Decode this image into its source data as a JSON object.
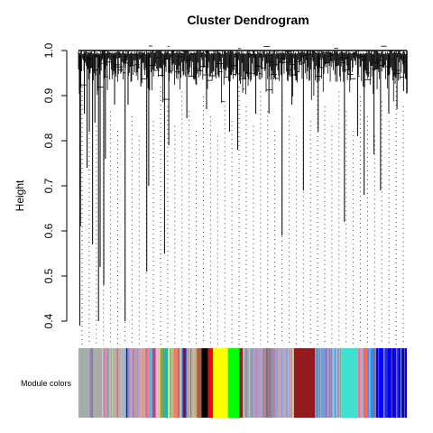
{
  "chart_data": [
    {
      "type": "dendrogram",
      "title": "Cluster Dendrogram",
      "ylabel": "Height",
      "xlabel": "",
      "ylim": [
        0.4,
        1.0
      ],
      "yticks": [
        "0.4",
        "0.5",
        "0.6",
        "0.7",
        "0.8",
        "0.9",
        "1.0"
      ],
      "merge_height_top": 1.0,
      "leaf_branches": [
        {
          "x": 0.004,
          "low": 0.39
        },
        {
          "x": 0.006,
          "low": 0.61
        },
        {
          "x": 0.018,
          "low": 0.86
        },
        {
          "x": 0.026,
          "low": 0.74
        },
        {
          "x": 0.033,
          "low": 0.82
        },
        {
          "x": 0.043,
          "low": 0.57
        },
        {
          "x": 0.05,
          "low": 0.84
        },
        {
          "x": 0.061,
          "low": 0.4
        },
        {
          "x": 0.066,
          "low": 0.52
        },
        {
          "x": 0.077,
          "low": 0.48
        },
        {
          "x": 0.082,
          "low": 0.76
        },
        {
          "x": 0.11,
          "low": 0.88
        },
        {
          "x": 0.142,
          "low": 0.4
        },
        {
          "x": 0.151,
          "low": 0.88
        },
        {
          "x": 0.19,
          "low": 0.92
        },
        {
          "x": 0.208,
          "low": 0.51
        },
        {
          "x": 0.214,
          "low": 0.7
        },
        {
          "x": 0.262,
          "low": 0.55
        },
        {
          "x": 0.275,
          "low": 0.79
        },
        {
          "x": 0.33,
          "low": 0.85
        },
        {
          "x": 0.39,
          "low": 0.87
        },
        {
          "x": 0.46,
          "low": 0.82
        },
        {
          "x": 0.485,
          "low": 0.78
        },
        {
          "x": 0.54,
          "low": 0.86
        },
        {
          "x": 0.58,
          "low": 0.86
        },
        {
          "x": 0.62,
          "low": 0.59
        },
        {
          "x": 0.65,
          "low": 0.88
        },
        {
          "x": 0.685,
          "low": 0.69
        },
        {
          "x": 0.73,
          "low": 0.82
        },
        {
          "x": 0.81,
          "low": 0.62
        },
        {
          "x": 0.85,
          "low": 0.81
        },
        {
          "x": 0.87,
          "low": 0.68
        },
        {
          "x": 0.9,
          "low": 0.77
        },
        {
          "x": 0.92,
          "low": 0.69
        },
        {
          "x": 0.945,
          "low": 0.86
        },
        {
          "x": 0.97,
          "low": 0.87
        },
        {
          "x": 0.99,
          "low": 0.91
        }
      ]
    },
    {
      "type": "color-bar",
      "label": "Module colors",
      "segments": [
        {
          "from": 0.0,
          "to": 0.1,
          "color": "#a6aeac"
        },
        {
          "from": 0.1,
          "to": 0.13,
          "color": "#c9a5a7"
        },
        {
          "from": 0.13,
          "to": 0.145,
          "color": "#a6b5c5"
        },
        {
          "from": 0.145,
          "to": 0.152,
          "color": "#0a1b88"
        },
        {
          "from": 0.152,
          "to": 0.19,
          "color": "#b99fc6"
        },
        {
          "from": 0.19,
          "to": 0.205,
          "color": "#c1b08a"
        },
        {
          "from": 0.205,
          "to": 0.215,
          "color": "#ff6fa6"
        },
        {
          "from": 0.215,
          "to": 0.225,
          "color": "#2fd0c3"
        },
        {
          "from": 0.225,
          "to": 0.235,
          "color": "#ff00ff"
        },
        {
          "from": 0.235,
          "to": 0.25,
          "color": "#d7c4a2"
        },
        {
          "from": 0.25,
          "to": 0.262,
          "color": "#8b8b00"
        },
        {
          "from": 0.262,
          "to": 0.272,
          "color": "#00c0c0"
        },
        {
          "from": 0.272,
          "to": 0.29,
          "color": "#b7e49a"
        },
        {
          "from": 0.29,
          "to": 0.305,
          "color": "#fb7c54"
        },
        {
          "from": 0.305,
          "to": 0.315,
          "color": "#a4d8d8"
        },
        {
          "from": 0.315,
          "to": 0.33,
          "color": "#8b0a50"
        },
        {
          "from": 0.33,
          "to": 0.345,
          "color": "#d08f86"
        },
        {
          "from": 0.345,
          "to": 0.36,
          "color": "#c5b2a0"
        },
        {
          "from": 0.36,
          "to": 0.375,
          "color": "#b85b2c"
        },
        {
          "from": 0.375,
          "to": 0.395,
          "color": "#000000"
        },
        {
          "from": 0.395,
          "to": 0.41,
          "color": "#ff0000"
        },
        {
          "from": 0.41,
          "to": 0.455,
          "color": "#ffff00"
        },
        {
          "from": 0.455,
          "to": 0.49,
          "color": "#00ff00"
        },
        {
          "from": 0.49,
          "to": 0.5,
          "color": "#7f2a2a"
        },
        {
          "from": 0.5,
          "to": 0.57,
          "color": "#b09ec0"
        },
        {
          "from": 0.57,
          "to": 0.585,
          "color": "#8b6969"
        },
        {
          "from": 0.585,
          "to": 0.6,
          "color": "#6b8ed0"
        },
        {
          "from": 0.6,
          "to": 0.62,
          "color": "#c4a0b7"
        },
        {
          "from": 0.62,
          "to": 0.655,
          "color": "#b7a6c5"
        },
        {
          "from": 0.655,
          "to": 0.72,
          "color": "#931a1e"
        },
        {
          "from": 0.72,
          "to": 0.75,
          "color": "#6aa0d6"
        },
        {
          "from": 0.75,
          "to": 0.77,
          "color": "#9f82c6"
        },
        {
          "from": 0.77,
          "to": 0.79,
          "color": "#88bfea"
        },
        {
          "from": 0.79,
          "to": 0.8,
          "color": "#d1c0a0"
        },
        {
          "from": 0.8,
          "to": 0.85,
          "color": "#40e0d0"
        },
        {
          "from": 0.85,
          "to": 0.87,
          "color": "#bfa7b5"
        },
        {
          "from": 0.87,
          "to": 0.88,
          "color": "#ff4040"
        },
        {
          "from": 0.88,
          "to": 0.9,
          "color": "#1e90ff"
        },
        {
          "from": 0.9,
          "to": 0.93,
          "color": "#0000ff"
        },
        {
          "from": 0.93,
          "to": 0.94,
          "color": "#2b2bd0"
        },
        {
          "from": 0.94,
          "to": 1.0,
          "color": "#0000ff"
        }
      ]
    }
  ],
  "colors": {
    "axis": "#000000",
    "branch": "#000000",
    "guide": "#444444"
  }
}
